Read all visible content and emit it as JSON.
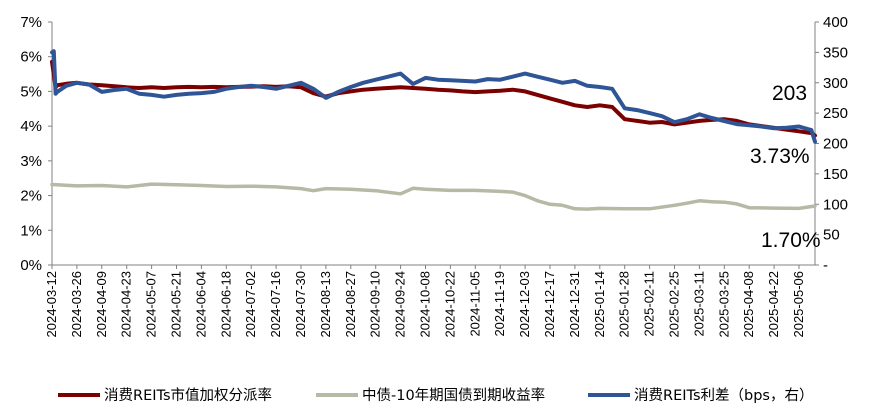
{
  "chart_data": {
    "type": "line",
    "title": "",
    "xlabel": "",
    "ylabel": "",
    "y2label": "",
    "ylim": [
      0,
      7
    ],
    "y2lim": [
      0,
      400
    ],
    "yticks": [
      "0%",
      "1%",
      "2%",
      "3%",
      "4%",
      "5%",
      "6%",
      "7%"
    ],
    "y2ticks": [
      "-",
      "50",
      "100",
      "150",
      "200",
      "250",
      "300",
      "350",
      "400"
    ],
    "xrange": [
      "2024-03-12",
      "2025-05-15"
    ],
    "x_tick_labels": [
      "2024-03-12",
      "2024-03-26",
      "2024-04-09",
      "2024-04-23",
      "2024-05-07",
      "2024-05-21",
      "2024-06-04",
      "2024-06-18",
      "2024-07-02",
      "2024-07-16",
      "2024-07-30",
      "2024-08-13",
      "2024-08-27",
      "2024-09-10",
      "2024-09-24",
      "2024-10-08",
      "2024-10-22",
      "2024-11-05",
      "2024-11-19",
      "2024-12-03",
      "2024-12-17",
      "2024-12-31",
      "2025-01-14",
      "2025-01-28",
      "2025-02-11",
      "2025-02-25",
      "2025-03-11",
      "2025-03-25",
      "2025-04-08",
      "2025-04-22",
      "2025-05-06"
    ],
    "grid": false,
    "legend_position": "bottom",
    "series": [
      {
        "name": "消费REITs市值加权分派率",
        "axis": "left",
        "color": "#7b0000",
        "x": [
          "2024-03-12",
          "2024-03-14",
          "2024-03-15",
          "2024-03-20",
          "2024-03-26",
          "2024-04-02",
          "2024-04-09",
          "2024-04-16",
          "2024-04-23",
          "2024-04-30",
          "2024-05-07",
          "2024-05-14",
          "2024-05-21",
          "2024-05-28",
          "2024-06-04",
          "2024-06-11",
          "2024-06-18",
          "2024-06-25",
          "2024-07-02",
          "2024-07-09",
          "2024-07-16",
          "2024-07-23",
          "2024-07-30",
          "2024-08-06",
          "2024-08-13",
          "2024-08-20",
          "2024-08-27",
          "2024-09-03",
          "2024-09-10",
          "2024-09-17",
          "2024-09-24",
          "2024-10-01",
          "2024-10-08",
          "2024-10-15",
          "2024-10-22",
          "2024-10-29",
          "2024-11-05",
          "2024-11-12",
          "2024-11-19",
          "2024-11-26",
          "2024-12-03",
          "2024-12-10",
          "2024-12-17",
          "2024-12-24",
          "2024-12-31",
          "2025-01-07",
          "2025-01-14",
          "2025-01-21",
          "2025-01-24",
          "2025-01-28",
          "2025-02-04",
          "2025-02-11",
          "2025-02-18",
          "2025-02-25",
          "2025-03-04",
          "2025-03-11",
          "2025-03-18",
          "2025-03-25",
          "2025-04-01",
          "2025-04-08",
          "2025-04-15",
          "2025-04-22",
          "2025-04-29",
          "2025-05-06",
          "2025-05-13",
          "2025-05-15"
        ],
        "values": [
          5.85,
          5.12,
          5.18,
          5.22,
          5.25,
          5.2,
          5.18,
          5.15,
          5.12,
          5.1,
          5.12,
          5.1,
          5.12,
          5.13,
          5.12,
          5.13,
          5.12,
          5.13,
          5.14,
          5.15,
          5.13,
          5.15,
          5.12,
          4.95,
          4.85,
          4.95,
          5.0,
          5.05,
          5.08,
          5.1,
          5.12,
          5.1,
          5.08,
          5.05,
          5.03,
          5.0,
          4.98,
          5.0,
          5.02,
          5.05,
          5.0,
          4.9,
          4.8,
          4.7,
          4.6,
          4.55,
          4.6,
          4.55,
          4.4,
          4.2,
          4.15,
          4.1,
          4.12,
          4.05,
          4.1,
          4.15,
          4.18,
          4.2,
          4.15,
          4.05,
          4.0,
          3.95,
          3.9,
          3.85,
          3.8,
          3.73
        ]
      },
      {
        "name": "中债-10年期国债到期收益率",
        "axis": "left",
        "color": "#b8b8a6",
        "x": [
          "2024-03-12",
          "2024-03-26",
          "2024-04-09",
          "2024-04-23",
          "2024-05-07",
          "2024-05-21",
          "2024-06-04",
          "2024-06-18",
          "2024-07-02",
          "2024-07-16",
          "2024-07-30",
          "2024-08-06",
          "2024-08-13",
          "2024-08-27",
          "2024-09-10",
          "2024-09-24",
          "2024-10-01",
          "2024-10-08",
          "2024-10-22",
          "2024-11-05",
          "2024-11-19",
          "2024-11-26",
          "2024-12-03",
          "2024-12-10",
          "2024-12-17",
          "2024-12-24",
          "2024-12-31",
          "2025-01-07",
          "2025-01-14",
          "2025-01-28",
          "2025-02-11",
          "2025-02-25",
          "2025-03-04",
          "2025-03-11",
          "2025-03-18",
          "2025-03-25",
          "2025-04-01",
          "2025-04-08",
          "2025-04-22",
          "2025-05-06",
          "2025-05-15"
        ],
        "values": [
          2.32,
          2.28,
          2.29,
          2.25,
          2.33,
          2.31,
          2.29,
          2.26,
          2.27,
          2.25,
          2.2,
          2.14,
          2.2,
          2.18,
          2.14,
          2.05,
          2.21,
          2.18,
          2.15,
          2.15,
          2.12,
          2.1,
          2.0,
          1.85,
          1.75,
          1.72,
          1.62,
          1.61,
          1.63,
          1.62,
          1.62,
          1.72,
          1.78,
          1.85,
          1.82,
          1.81,
          1.76,
          1.65,
          1.64,
          1.63,
          1.7
        ]
      },
      {
        "name": "消费REITs利差（bps，右）",
        "axis": "right",
        "color": "#2f5597",
        "x": [
          "2024-03-12",
          "2024-03-13",
          "2024-03-14",
          "2024-03-15",
          "2024-03-20",
          "2024-03-26",
          "2024-04-02",
          "2024-04-09",
          "2024-04-16",
          "2024-04-23",
          "2024-04-30",
          "2024-05-07",
          "2024-05-14",
          "2024-05-21",
          "2024-05-28",
          "2024-06-04",
          "2024-06-11",
          "2024-06-18",
          "2024-06-25",
          "2024-07-02",
          "2024-07-09",
          "2024-07-16",
          "2024-07-23",
          "2024-07-30",
          "2024-08-06",
          "2024-08-13",
          "2024-08-20",
          "2024-08-27",
          "2024-09-03",
          "2024-09-10",
          "2024-09-17",
          "2024-09-24",
          "2024-10-01",
          "2024-10-08",
          "2024-10-15",
          "2024-10-22",
          "2024-10-29",
          "2024-11-05",
          "2024-11-12",
          "2024-11-19",
          "2024-11-26",
          "2024-12-03",
          "2024-12-10",
          "2024-12-17",
          "2024-12-24",
          "2024-12-31",
          "2025-01-07",
          "2025-01-14",
          "2025-01-21",
          "2025-01-28",
          "2025-02-04",
          "2025-02-11",
          "2025-02-18",
          "2025-02-25",
          "2025-03-04",
          "2025-03-11",
          "2025-03-18",
          "2025-03-25",
          "2025-04-01",
          "2025-04-08",
          "2025-04-15",
          "2025-04-22",
          "2025-04-29",
          "2025-05-06",
          "2025-05-13",
          "2025-05-15"
        ],
        "values": [
          350,
          352,
          282,
          285,
          295,
          300,
          297,
          285,
          288,
          290,
          282,
          280,
          277,
          280,
          282,
          283,
          285,
          290,
          293,
          295,
          293,
          290,
          295,
          300,
          290,
          275,
          285,
          293,
          300,
          305,
          310,
          315,
          298,
          308,
          305,
          304,
          303,
          302,
          306,
          305,
          310,
          315,
          310,
          305,
          300,
          303,
          295,
          293,
          290,
          258,
          255,
          250,
          245,
          235,
          240,
          248,
          242,
          237,
          232,
          230,
          228,
          225,
          226,
          228,
          222,
          203
        ]
      }
    ],
    "annotations": [
      "203",
      "3.73%",
      "1.70%"
    ]
  }
}
